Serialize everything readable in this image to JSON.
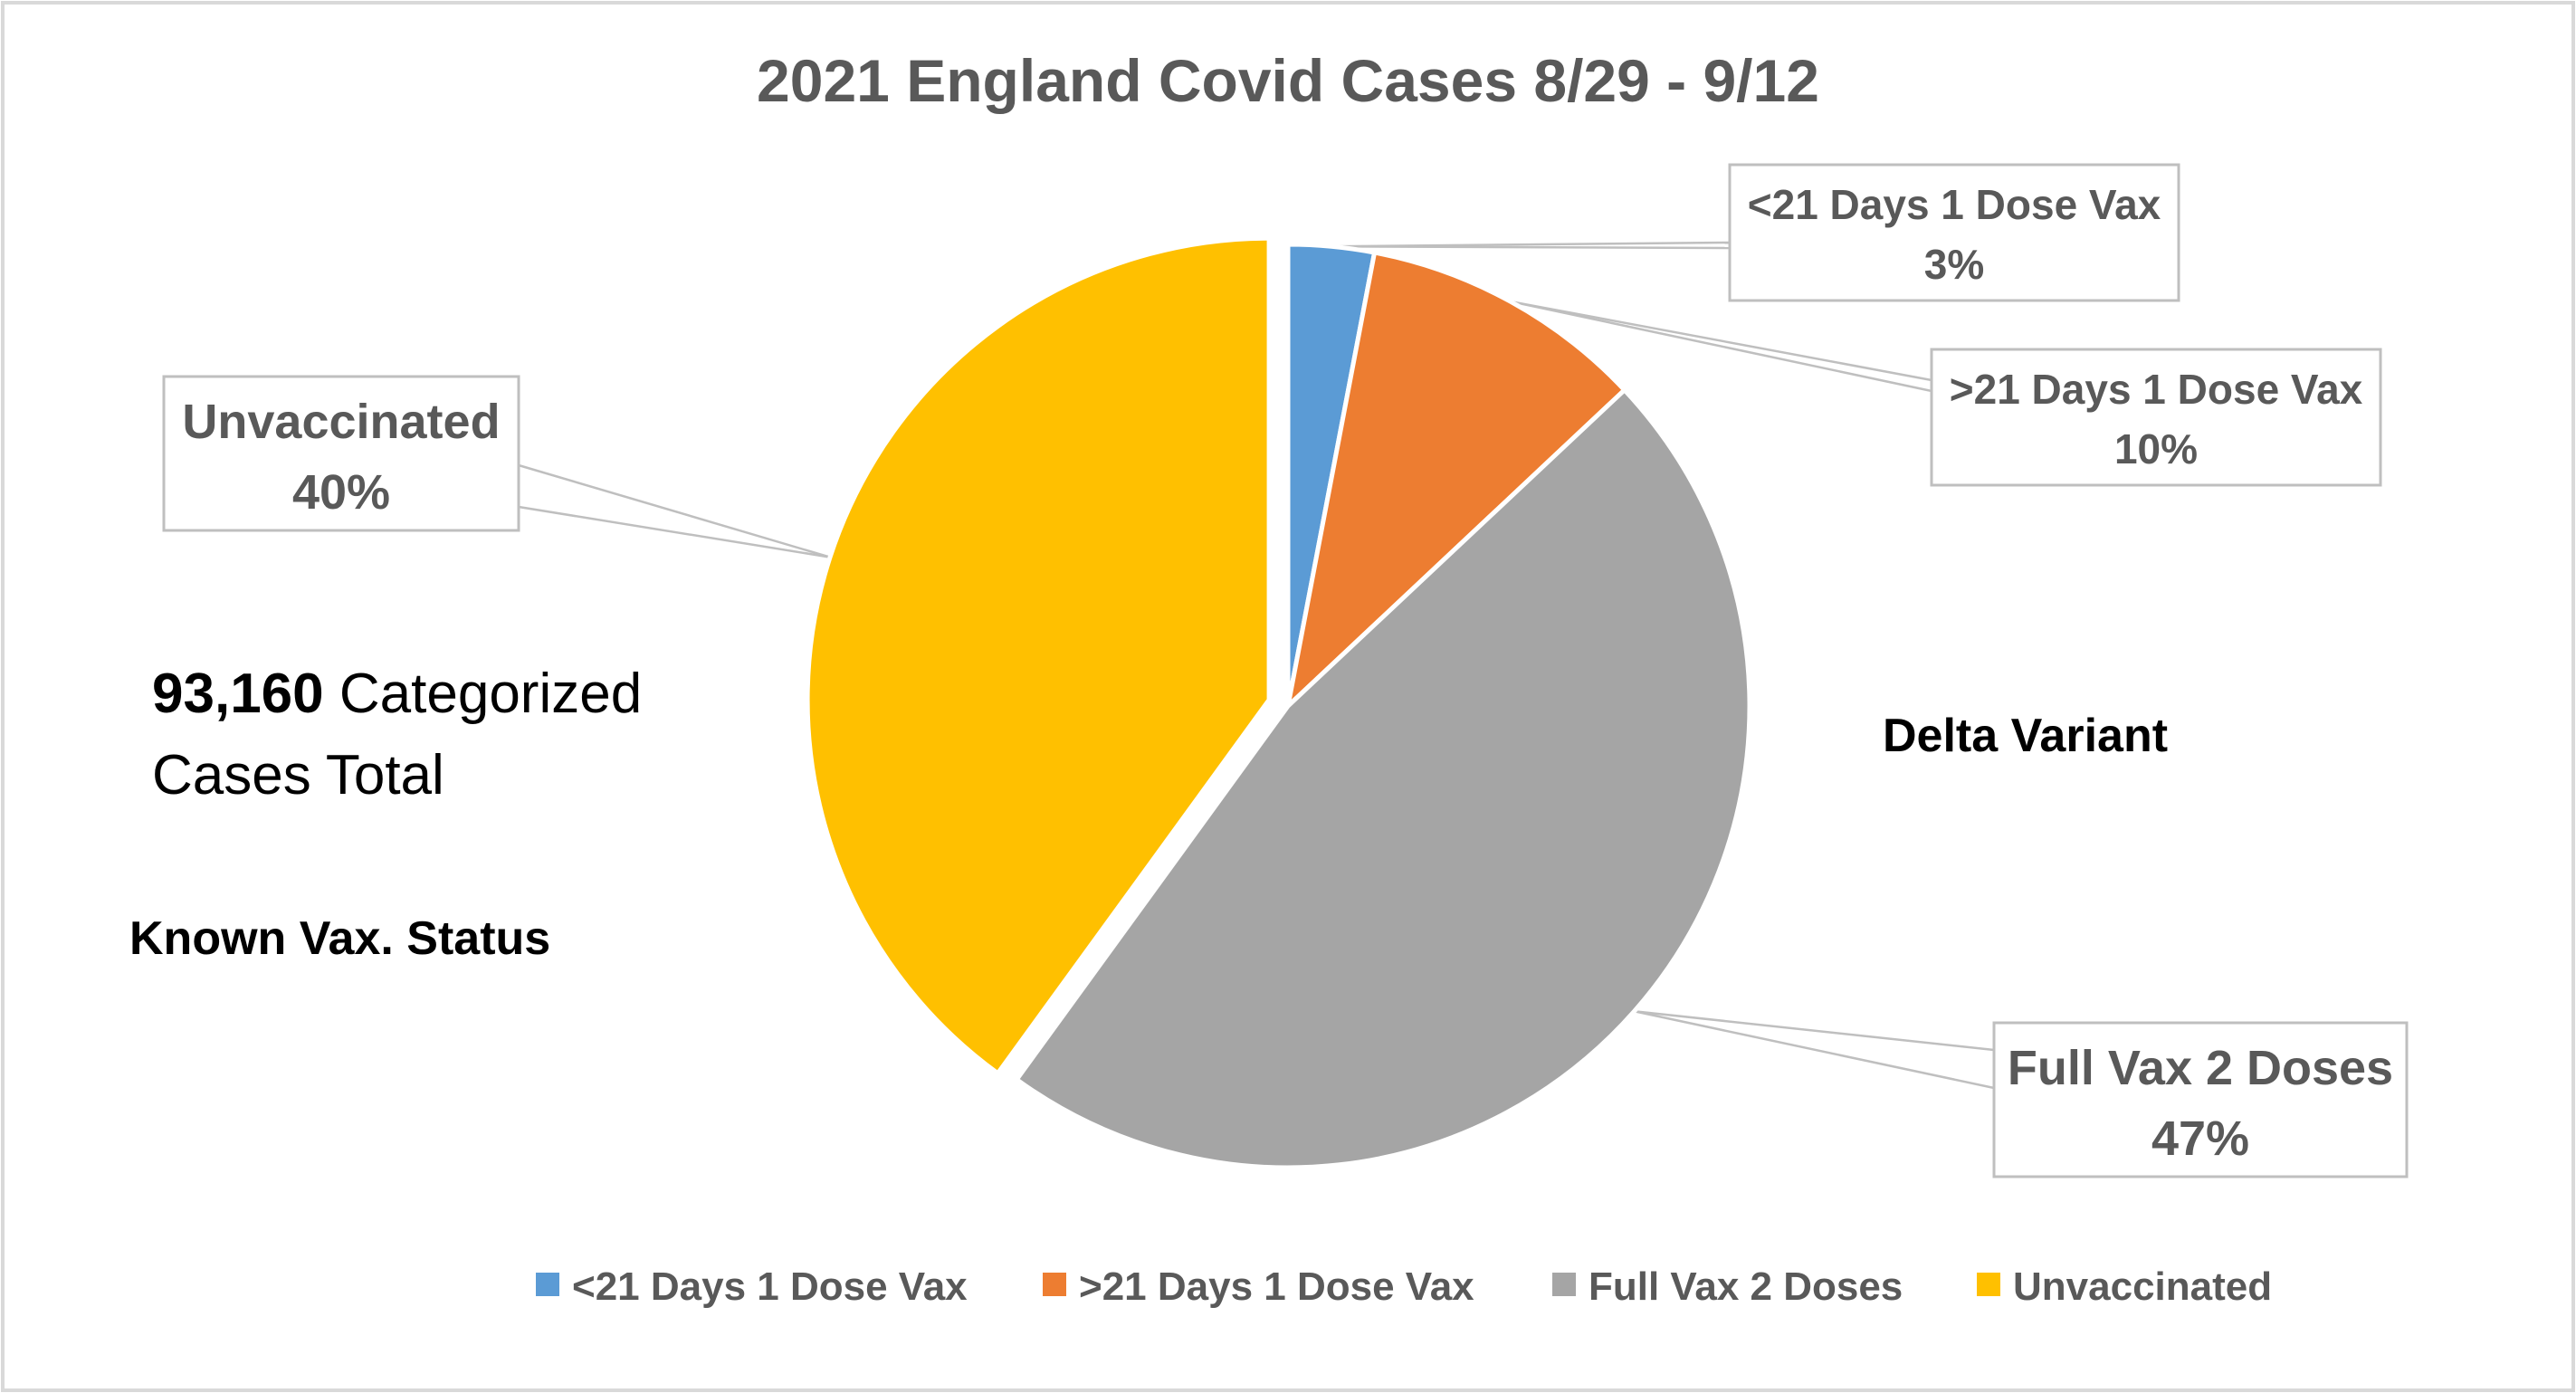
{
  "chart_data": {
    "type": "pie",
    "title": "2021 England Covid Cases 8/29 - 9/12",
    "slices": [
      {
        "label": "<21 Days 1 Dose Vax",
        "value": 3,
        "value_label": "3%",
        "color": "#5B9BD5"
      },
      {
        "label": ">21 Days 1 Dose Vax",
        "value": 10,
        "value_label": "10%",
        "color": "#ED7D31"
      },
      {
        "label": "Full Vax 2 Doses",
        "value": 47,
        "value_label": "47%",
        "color": "#A5A5A5"
      },
      {
        "label": "Unvaccinated",
        "value": 40,
        "value_label": "40%",
        "color": "#FFC000"
      }
    ],
    "legend": {
      "position": "bottom",
      "entries": [
        "<21 Days 1 Dose Vax",
        ">21 Days 1 Dose Vax",
        "Full Vax 2 Doses",
        "Unvaccinated"
      ]
    },
    "annotations": {
      "total_number": "93,160",
      "total_text": "Categorized",
      "total_text_line2": "Cases Total",
      "known_status": "Known Vax. Status",
      "variant": "Delta Variant"
    }
  }
}
